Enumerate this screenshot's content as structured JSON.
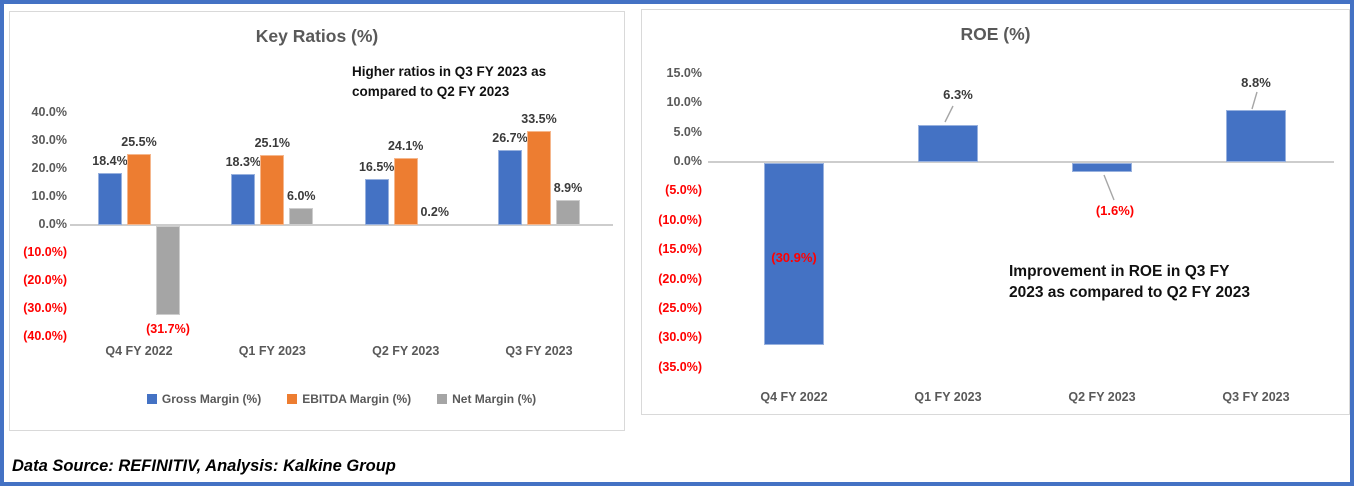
{
  "frame": {
    "border_color": "#4472C4",
    "source_note": "Data Source: REFINITIV, Analysis: Kalkine Group"
  },
  "colors": {
    "blue": "#4472C4",
    "orange": "#ED7D31",
    "gray": "#A5A5A5",
    "negative_red": "#FF0000",
    "axis_text": "#595959",
    "panel_border": "#D9D9D9"
  },
  "chart_data": [
    {
      "id": "key_ratios",
      "type": "bar",
      "title": "Key Ratios (%)",
      "annotation_lines": [
        "Higher ratios in Q3 FY 2023 as",
        "compared to Q2 FY 2023"
      ],
      "categories": [
        "Q4 FY 2022",
        "Q1 FY 2023",
        "Q2 FY 2023",
        "Q3 FY 2023"
      ],
      "series": [
        {
          "name": "Gross Margin (%)",
          "color": "#4472C4",
          "values": [
            18.4,
            18.3,
            16.5,
            26.7
          ],
          "labels": [
            "18.4%",
            "18.3%",
            "16.5%",
            "26.7%"
          ]
        },
        {
          "name": "EBITDA Margin (%)",
          "color": "#ED7D31",
          "values": [
            25.5,
            25.1,
            24.1,
            33.5
          ],
          "labels": [
            "25.5%",
            "25.1%",
            "24.1%",
            "33.5%"
          ]
        },
        {
          "name": "Net Margin (%)",
          "color": "#A5A5A5",
          "values": [
            -31.7,
            6.0,
            0.2,
            8.9
          ],
          "labels": [
            "(31.7%)",
            "6.0%",
            "0.2%",
            "8.9%"
          ]
        }
      ],
      "y_ticks": [
        {
          "v": 40,
          "label": "40.0%"
        },
        {
          "v": 30,
          "label": "30.0%"
        },
        {
          "v": 20,
          "label": "20.0%"
        },
        {
          "v": 10,
          "label": "10.0%"
        },
        {
          "v": 0,
          "label": "0.0%"
        },
        {
          "v": -10,
          "label": "(10.0%)"
        },
        {
          "v": -20,
          "label": "(20.0%)"
        },
        {
          "v": -30,
          "label": "(30.0%)"
        },
        {
          "v": -40,
          "label": "(40.0%)"
        }
      ],
      "ylim": [
        -40,
        40
      ],
      "grid": false,
      "legend_position": "bottom"
    },
    {
      "id": "roe",
      "type": "bar",
      "title": "ROE (%)",
      "annotation_lines": [
        "Improvement in ROE in Q3 FY",
        "2023 as compared to Q2 FY 2023"
      ],
      "categories": [
        "Q4 FY 2022",
        "Q1 FY 2023",
        "Q2 FY 2023",
        "Q3 FY 2023"
      ],
      "series": [
        {
          "name": "ROE (%)",
          "color": "#4472C4",
          "values": [
            -30.9,
            6.3,
            -1.6,
            8.8
          ],
          "labels": [
            "(30.9%)",
            "6.3%",
            "(1.6%)",
            "8.8%"
          ]
        }
      ],
      "y_ticks": [
        {
          "v": 15,
          "label": "15.0%"
        },
        {
          "v": 10,
          "label": "10.0%"
        },
        {
          "v": 5,
          "label": "5.0%"
        },
        {
          "v": 0,
          "label": "0.0%"
        },
        {
          "v": -5,
          "label": "(5.0%)"
        },
        {
          "v": -10,
          "label": "(10.0%)"
        },
        {
          "v": -15,
          "label": "(15.0%)"
        },
        {
          "v": -20,
          "label": "(20.0%)"
        },
        {
          "v": -25,
          "label": "(25.0%)"
        },
        {
          "v": -30,
          "label": "(30.0%)"
        },
        {
          "v": -35,
          "label": "(35.0%)"
        }
      ],
      "ylim": [
        -35,
        15
      ],
      "grid": false,
      "legend_position": "none"
    }
  ]
}
